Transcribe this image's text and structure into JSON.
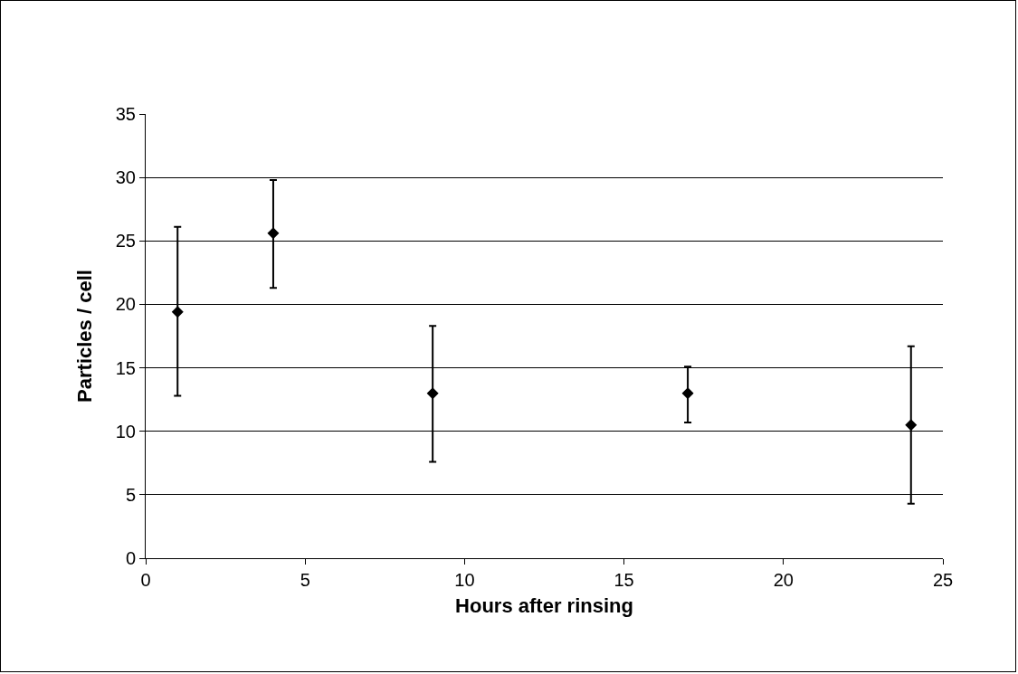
{
  "chart_data": {
    "type": "scatter",
    "xlabel": "Hours after rinsing",
    "ylabel": "Particles / cell",
    "x": [
      1,
      4,
      9,
      17,
      24
    ],
    "values": [
      19.4,
      25.6,
      13.0,
      13.0,
      10.5
    ],
    "errors": [
      [
        12.8,
        26.1
      ],
      [
        21.3,
        29.8
      ],
      [
        7.6,
        18.3
      ],
      [
        10.7,
        15.1
      ],
      [
        4.3,
        16.7
      ]
    ],
    "color": "#000000",
    "marker": "diamond",
    "grid": "y",
    "legend": false,
    "xlim": [
      0,
      25
    ],
    "xticks": [
      0,
      5,
      10,
      15,
      20,
      25
    ],
    "ylim": [
      0,
      35
    ],
    "yticks": [
      0,
      5,
      10,
      15,
      20,
      25,
      30,
      35
    ]
  }
}
